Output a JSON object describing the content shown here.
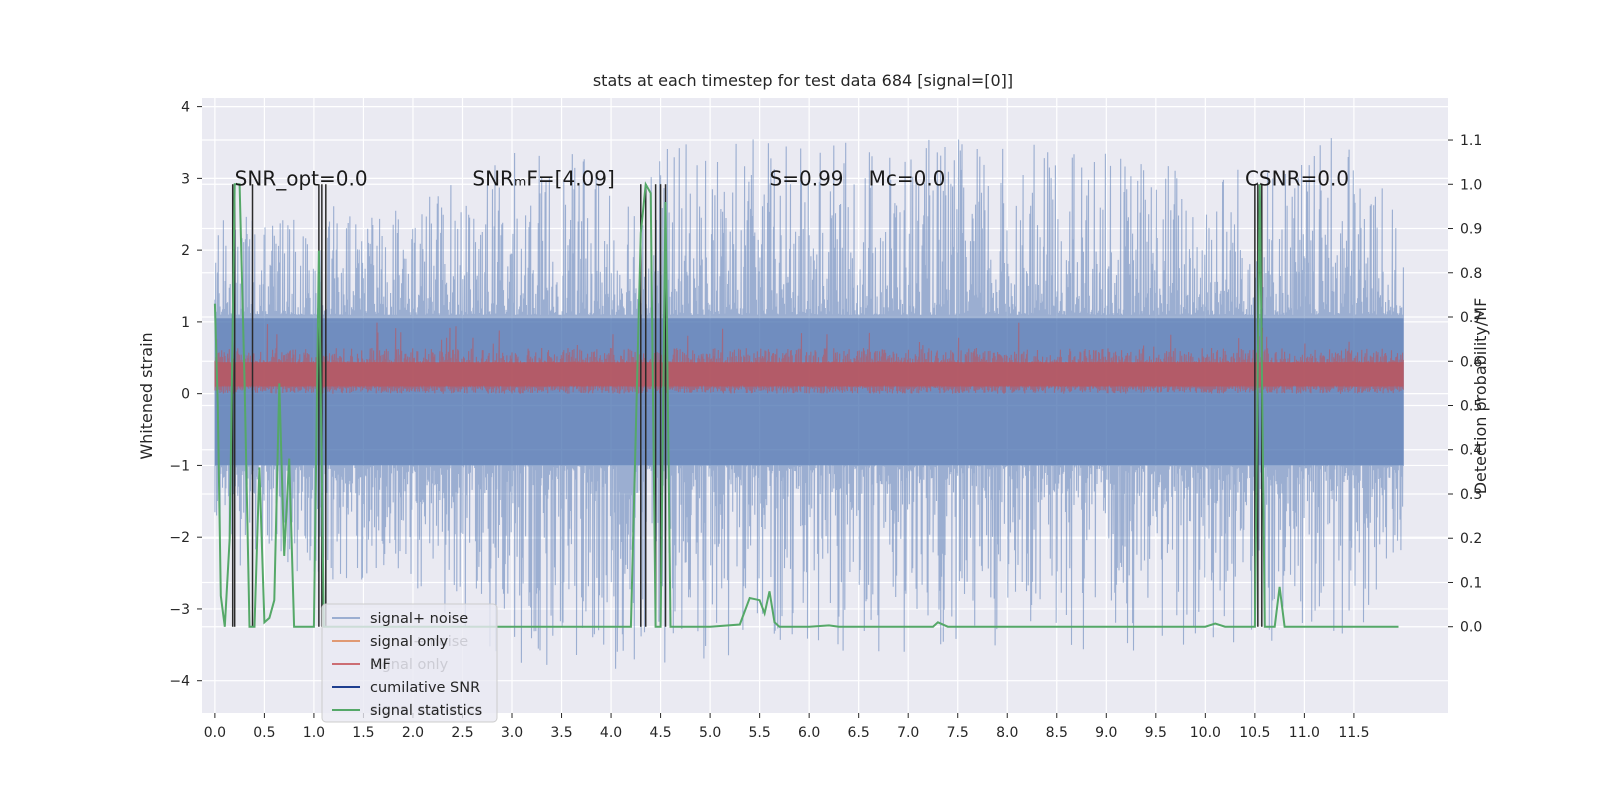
{
  "chart_data": {
    "type": "line",
    "title": "stats at each timestep for test data 684 [signal=[0]]",
    "xlabel": "",
    "ylabel": "Whitened strain",
    "y2label": "Detection probability/MF",
    "xlim": [
      -0.13,
      12.45
    ],
    "ylim": [
      -4.45,
      4.12
    ],
    "y2lim": [
      -0.195,
      1.195
    ],
    "xticks": [
      "0.0",
      "0.5",
      "1.0",
      "1.5",
      "2.0",
      "2.5",
      "3.0",
      "3.5",
      "4.0",
      "4.5",
      "5.0",
      "5.5",
      "6.0",
      "6.5",
      "7.0",
      "7.5",
      "8.0",
      "8.5",
      "9.0",
      "9.5",
      "10.0",
      "10.5",
      "11.0",
      "11.5"
    ],
    "yticks": [
      "−4",
      "−3",
      "−2",
      "−1",
      "0",
      "1",
      "2",
      "3",
      "4"
    ],
    "y2ticks": [
      "0.0",
      "0.1",
      "0.2",
      "0.3",
      "0.4",
      "0.5",
      "0.6",
      "0.7",
      "0.8",
      "0.9",
      "1.0",
      "1.1"
    ],
    "grid": true,
    "legend_position": "lower-left",
    "colors": {
      "background": "#eaeaf2",
      "grid": "#ffffff",
      "signal_noise": "#4c72b0",
      "signal_only": "#dd8452",
      "mf": "#c44e52",
      "cumulative_snr": "#1f3f8f",
      "signal_statistics": "#55a868",
      "markers": "#2b2b2b"
    },
    "series": [
      {
        "name": "signal+ noise",
        "envelope_x": [
          0.0,
          1.0,
          2.0,
          3.0,
          4.0,
          5.0,
          6.0,
          7.0,
          8.0,
          9.0,
          10.0,
          11.0,
          11.5,
          12.0
        ],
        "upper": [
          2.4,
          2.6,
          2.8,
          3.4,
          3.3,
          3.6,
          3.5,
          3.6,
          3.5,
          3.4,
          3.3,
          3.4,
          3.7,
          2.3
        ],
        "lower": [
          -2.4,
          -2.6,
          -2.8,
          -3.8,
          -3.9,
          -3.7,
          -3.6,
          -3.6,
          -3.5,
          -3.7,
          -3.6,
          -3.4,
          -3.4,
          -2.3
        ]
      },
      {
        "name": "signal only",
        "values": []
      },
      {
        "name": "MF",
        "envelope_x": [
          0.0,
          12.0
        ],
        "upper": [
          0.65,
          0.65
        ],
        "lower": [
          0.0,
          0.0
        ],
        "peak_upper": 1.0
      },
      {
        "name": "cumilative SNR",
        "values": []
      },
      {
        "name": "signal statistics",
        "x": [
          0.0,
          0.03,
          0.06,
          0.1,
          0.15,
          0.2,
          0.25,
          0.3,
          0.35,
          0.4,
          0.45,
          0.5,
          0.55,
          0.6,
          0.65,
          0.7,
          0.75,
          0.8,
          0.85,
          0.9,
          0.95,
          1.0,
          1.05,
          1.1,
          1.15,
          1.2,
          1.3,
          1.5,
          2.0,
          2.5,
          3.0,
          3.5,
          4.0,
          4.2,
          4.3,
          4.35,
          4.4,
          4.45,
          4.5,
          4.55,
          4.6,
          4.65,
          4.7,
          5.0,
          5.3,
          5.4,
          5.5,
          5.55,
          5.6,
          5.65,
          5.7,
          5.75,
          5.8,
          6.0,
          6.2,
          6.3,
          6.4,
          7.0,
          7.25,
          7.3,
          7.4,
          8.0,
          9.0,
          9.9,
          10.0,
          10.1,
          10.2,
          10.4,
          10.45,
          10.5,
          10.55,
          10.6,
          10.65,
          10.7,
          10.75,
          10.8,
          10.9,
          11.0,
          11.5,
          11.95
        ],
        "values": [
          0.73,
          0.5,
          0.07,
          0.0,
          0.2,
          1.0,
          1.0,
          0.55,
          0.0,
          0.0,
          0.36,
          0.01,
          0.02,
          0.06,
          0.55,
          0.16,
          0.38,
          0.0,
          0.0,
          0.0,
          0.0,
          0.0,
          0.85,
          0.0,
          0.0,
          0.0,
          0.0,
          0.0,
          0.0,
          0.0,
          0.0,
          0.0,
          0.0,
          0.0,
          0.89,
          1.0,
          0.98,
          0.0,
          0.0,
          0.96,
          0.0,
          0.0,
          0.0,
          0.0,
          0.005,
          0.065,
          0.06,
          0.03,
          0.08,
          0.01,
          0.0,
          0.0,
          0.0,
          0.0,
          0.003,
          0.0,
          0.0,
          0.0,
          0.0,
          0.01,
          0.0,
          0.0,
          0.0,
          0.0,
          0.0,
          0.007,
          0.0,
          0.0,
          0.0,
          0.0,
          1.0,
          0.0,
          0.0,
          0.0,
          0.09,
          0.0,
          0.0,
          0.0,
          0.0,
          0.0
        ]
      }
    ],
    "marker_lines_x": [
      0.18,
      0.2,
      0.38,
      1.05,
      1.08,
      1.12,
      4.3,
      4.35,
      4.45,
      4.5,
      4.55,
      10.5,
      10.53,
      10.57
    ],
    "marker_line_yrange": [
      0.0,
      1.0
    ],
    "annotations": [
      {
        "text": "SNR_opt=0.0",
        "x": 0.2,
        "y": 3.0
      },
      {
        "text": "SNRₘF=[4.09]",
        "x": 2.6,
        "y": 3.0
      },
      {
        "text": "S=0.99",
        "x": 5.6,
        "y": 3.0
      },
      {
        "text": "Mᴄ=0.0",
        "x": 6.6,
        "y": 3.0
      },
      {
        "text": "CSNR=0.0",
        "x": 10.4,
        "y": 3.0
      }
    ],
    "legend": [
      "signal+ noise",
      "signal only",
      "MF",
      "cumilative SNR",
      "signal statistics"
    ],
    "legend_ghost": [
      "signal+ noise",
      "signal only",
      "signal statistics"
    ]
  }
}
